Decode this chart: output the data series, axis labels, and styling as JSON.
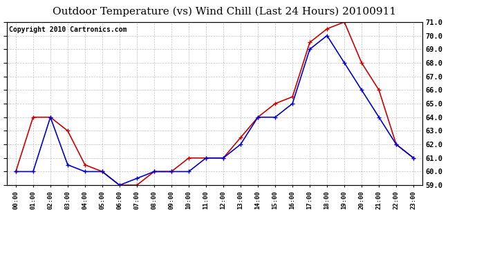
{
  "title": "Outdoor Temperature (vs) Wind Chill (Last 24 Hours) 20100911",
  "copyright": "Copyright 2010 Cartronics.com",
  "hours": [
    "00:00",
    "01:00",
    "02:00",
    "03:00",
    "04:00",
    "05:00",
    "06:00",
    "07:00",
    "08:00",
    "09:00",
    "10:00",
    "11:00",
    "12:00",
    "13:00",
    "14:00",
    "15:00",
    "16:00",
    "17:00",
    "18:00",
    "19:00",
    "20:00",
    "21:00",
    "22:00",
    "23:00"
  ],
  "outdoor_temp": [
    60.0,
    60.0,
    64.0,
    60.5,
    60.0,
    60.0,
    59.0,
    59.5,
    60.0,
    60.0,
    60.0,
    61.0,
    61.0,
    62.0,
    64.0,
    64.0,
    65.0,
    69.0,
    70.0,
    68.0,
    66.0,
    64.0,
    62.0,
    61.0
  ],
  "wind_chill": [
    60.0,
    64.0,
    64.0,
    63.0,
    60.5,
    60.0,
    59.0,
    59.0,
    60.0,
    60.0,
    61.0,
    61.0,
    61.0,
    62.5,
    64.0,
    65.0,
    65.5,
    69.5,
    70.5,
    71.0,
    68.0,
    66.0,
    62.0,
    61.0
  ],
  "temp_color": "#0000cc",
  "wind_color": "#cc0000",
  "bg_color": "#ffffff",
  "grid_color": "#bbbbbb",
  "ylim": [
    59.0,
    71.0
  ],
  "yticks": [
    59.0,
    60.0,
    61.0,
    62.0,
    63.0,
    64.0,
    65.0,
    66.0,
    67.0,
    68.0,
    69.0,
    70.0,
    71.0
  ],
  "title_fontsize": 11,
  "copyright_fontsize": 7,
  "marker": "+",
  "marker_size": 5,
  "linewidth": 1.2
}
